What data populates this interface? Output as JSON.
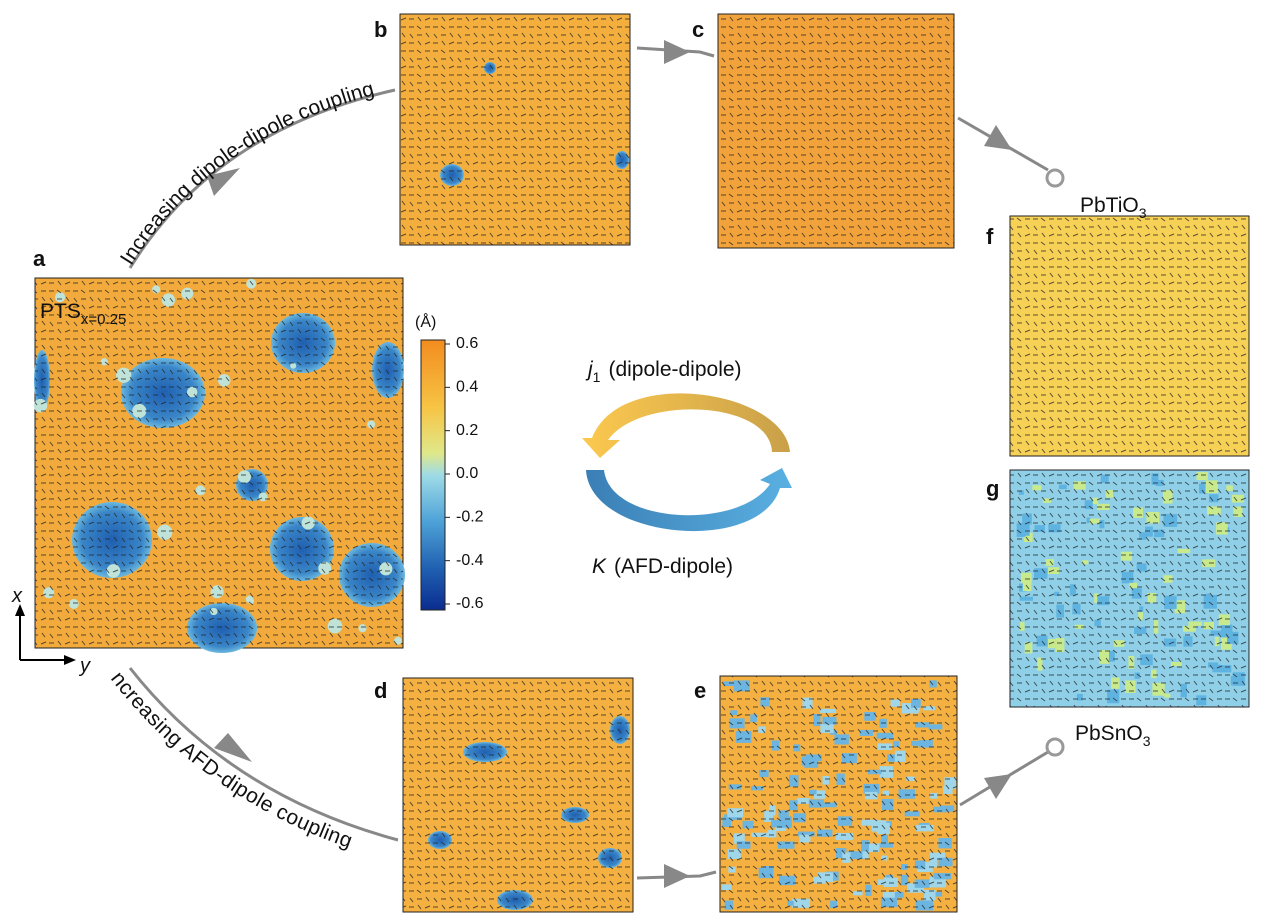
{
  "panels": [
    "a",
    "b",
    "c",
    "d",
    "e",
    "f",
    "g"
  ],
  "composition": {
    "text": "PTS",
    "subscript": "x=0.25"
  },
  "arrows": {
    "top": "Increasing dipole-dipole coupling",
    "bottom": "Increasing AFD-dipole coupling"
  },
  "materials": [
    {
      "name": "PbTiO",
      "subscript": "3"
    },
    {
      "name": "PbSnO",
      "subscript": "3"
    }
  ],
  "colorbar": {
    "unit": "(Å)",
    "lim": [
      -0.6,
      0.6
    ],
    "ticks": [
      0.6,
      0.4,
      0.2,
      {
        "value": 0,
        "label": "0.0"
      },
      -0.2,
      -0.4,
      -0.6
    ]
  },
  "cycle": {
    "top": {
      "symbol": "j",
      "subscript": "1",
      "text": "(dipole-dipole)"
    },
    "bottom": {
      "symbol": "K",
      "text": "(AFD-dipole)"
    }
  },
  "axes": {
    "vertical": "x",
    "horizontal": "y"
  }
}
